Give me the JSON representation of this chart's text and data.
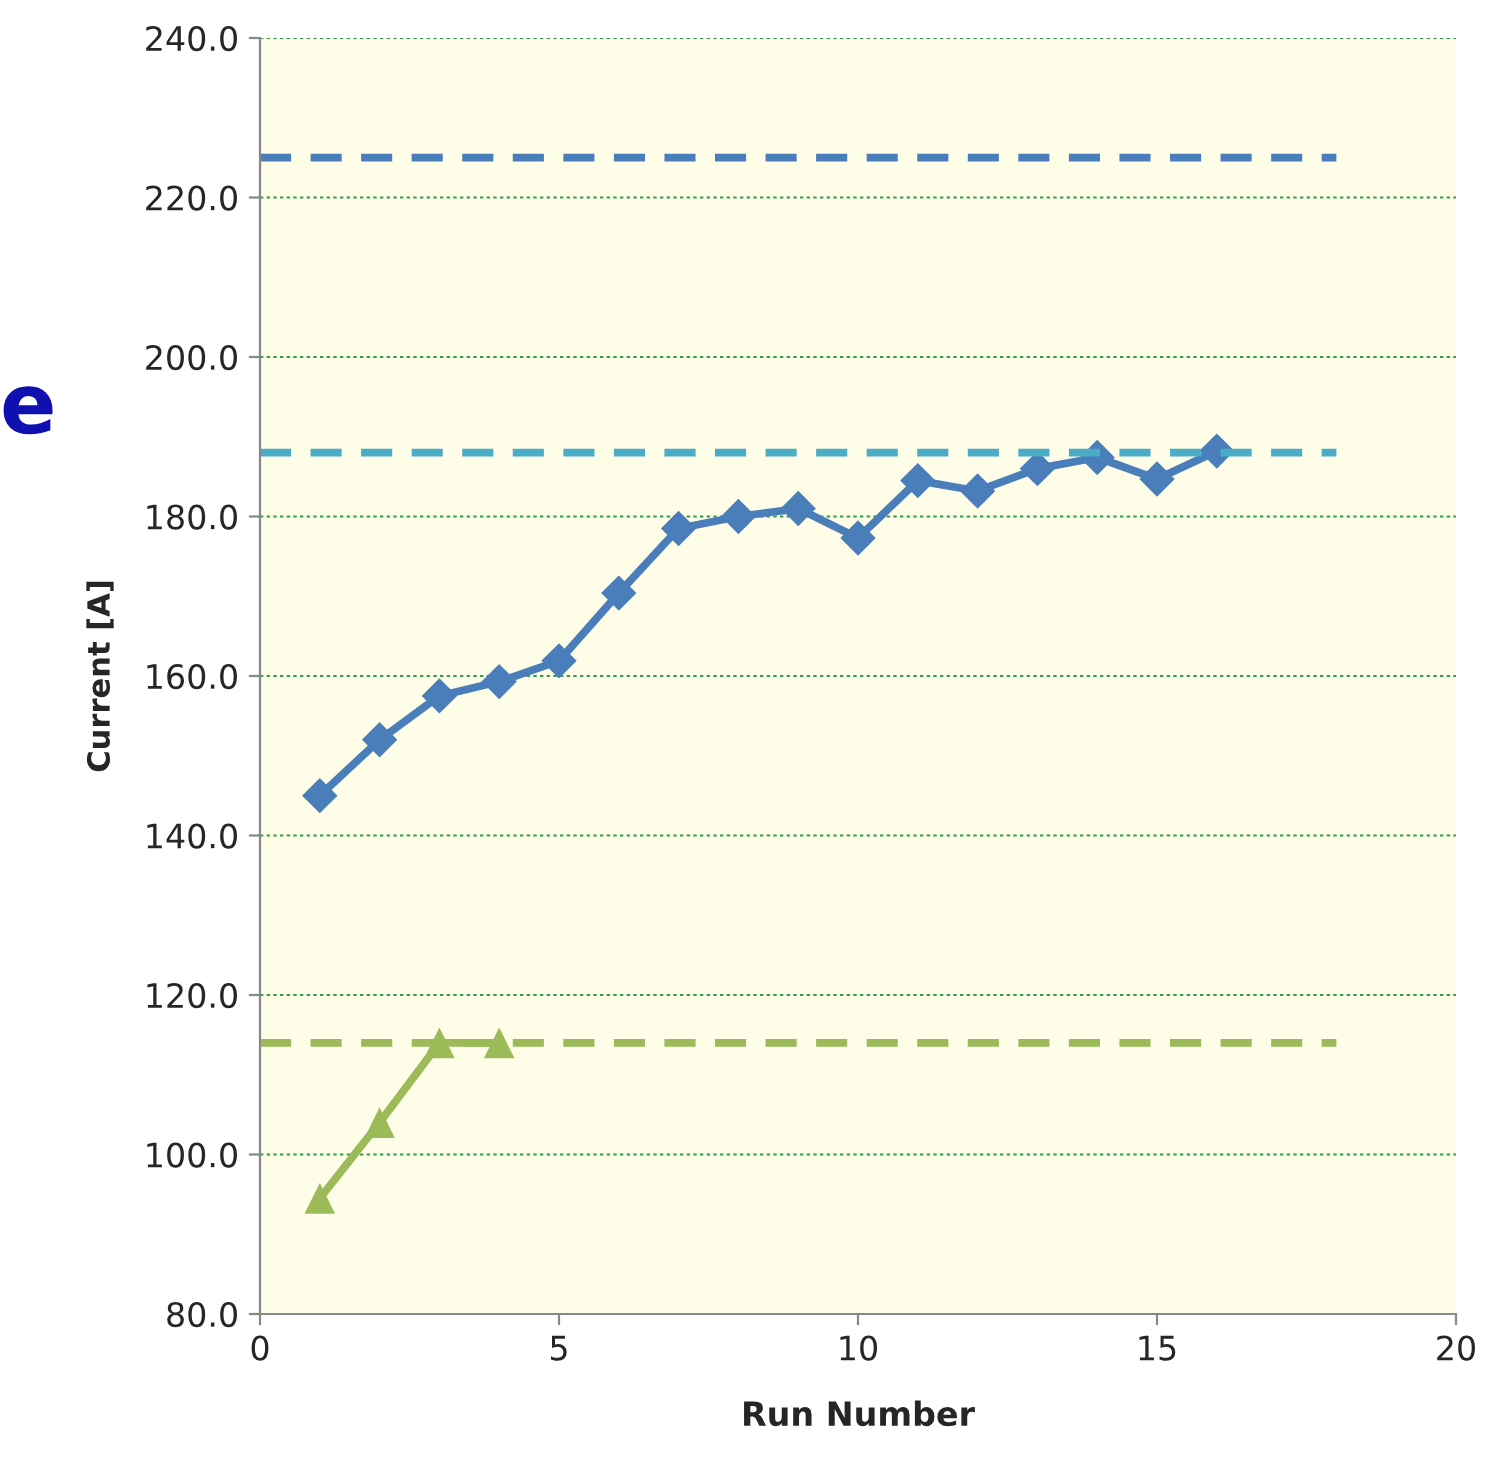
{
  "chart_data": {
    "type": "line",
    "xlabel": "Run Number",
    "ylabel": "Current [A]",
    "xlim": [
      0,
      20
    ],
    "xticks": [
      0,
      5,
      10,
      15,
      20
    ],
    "ylim": [
      80,
      240
    ],
    "yticks": [
      {
        "value": 80,
        "label": "80.0"
      },
      {
        "value": 100,
        "label": "100.0"
      },
      {
        "value": 120,
        "label": "120.0"
      },
      {
        "value": 140,
        "label": "140.0"
      },
      {
        "value": 160,
        "label": "160.0"
      },
      {
        "value": 180,
        "label": "180.0"
      },
      {
        "value": 200,
        "label": "200.0"
      },
      {
        "value": 220,
        "label": "220.0"
      },
      {
        "value": 240,
        "label": "240.0"
      }
    ],
    "grid": "y",
    "series": [
      {
        "color": "#4a7ebb",
        "marker": "diamond",
        "x": [
          1,
          2,
          3,
          4,
          5,
          6,
          7,
          8,
          9,
          10,
          11,
          12,
          13,
          14,
          15,
          16
        ],
        "values": [
          145,
          152,
          157.5,
          159.3,
          161.9,
          170.4,
          178.5,
          180,
          181,
          177.3,
          184.5,
          183.2,
          186,
          187.4,
          184.7,
          188.2
        ]
      },
      {
        "color": "#9bbb59",
        "marker": "triangle",
        "x": [
          1,
          2,
          3,
          4
        ],
        "values": [
          94.5,
          104,
          114,
          114
        ]
      },
      {
        "color": "#4a7ebb",
        "marker": "none",
        "line_style": "dashed",
        "x": [
          0,
          18
        ],
        "values": [
          225,
          225
        ]
      },
      {
        "color": "#4bacc6",
        "marker": "none",
        "line_style": "dashed",
        "x": [
          0,
          18
        ],
        "values": [
          188,
          188
        ]
      },
      {
        "color": "#9bbb59",
        "marker": "none",
        "line_style": "dashed",
        "x": [
          0,
          18
        ],
        "values": [
          114,
          114
        ]
      }
    ],
    "annotations": [
      "e"
    ]
  }
}
